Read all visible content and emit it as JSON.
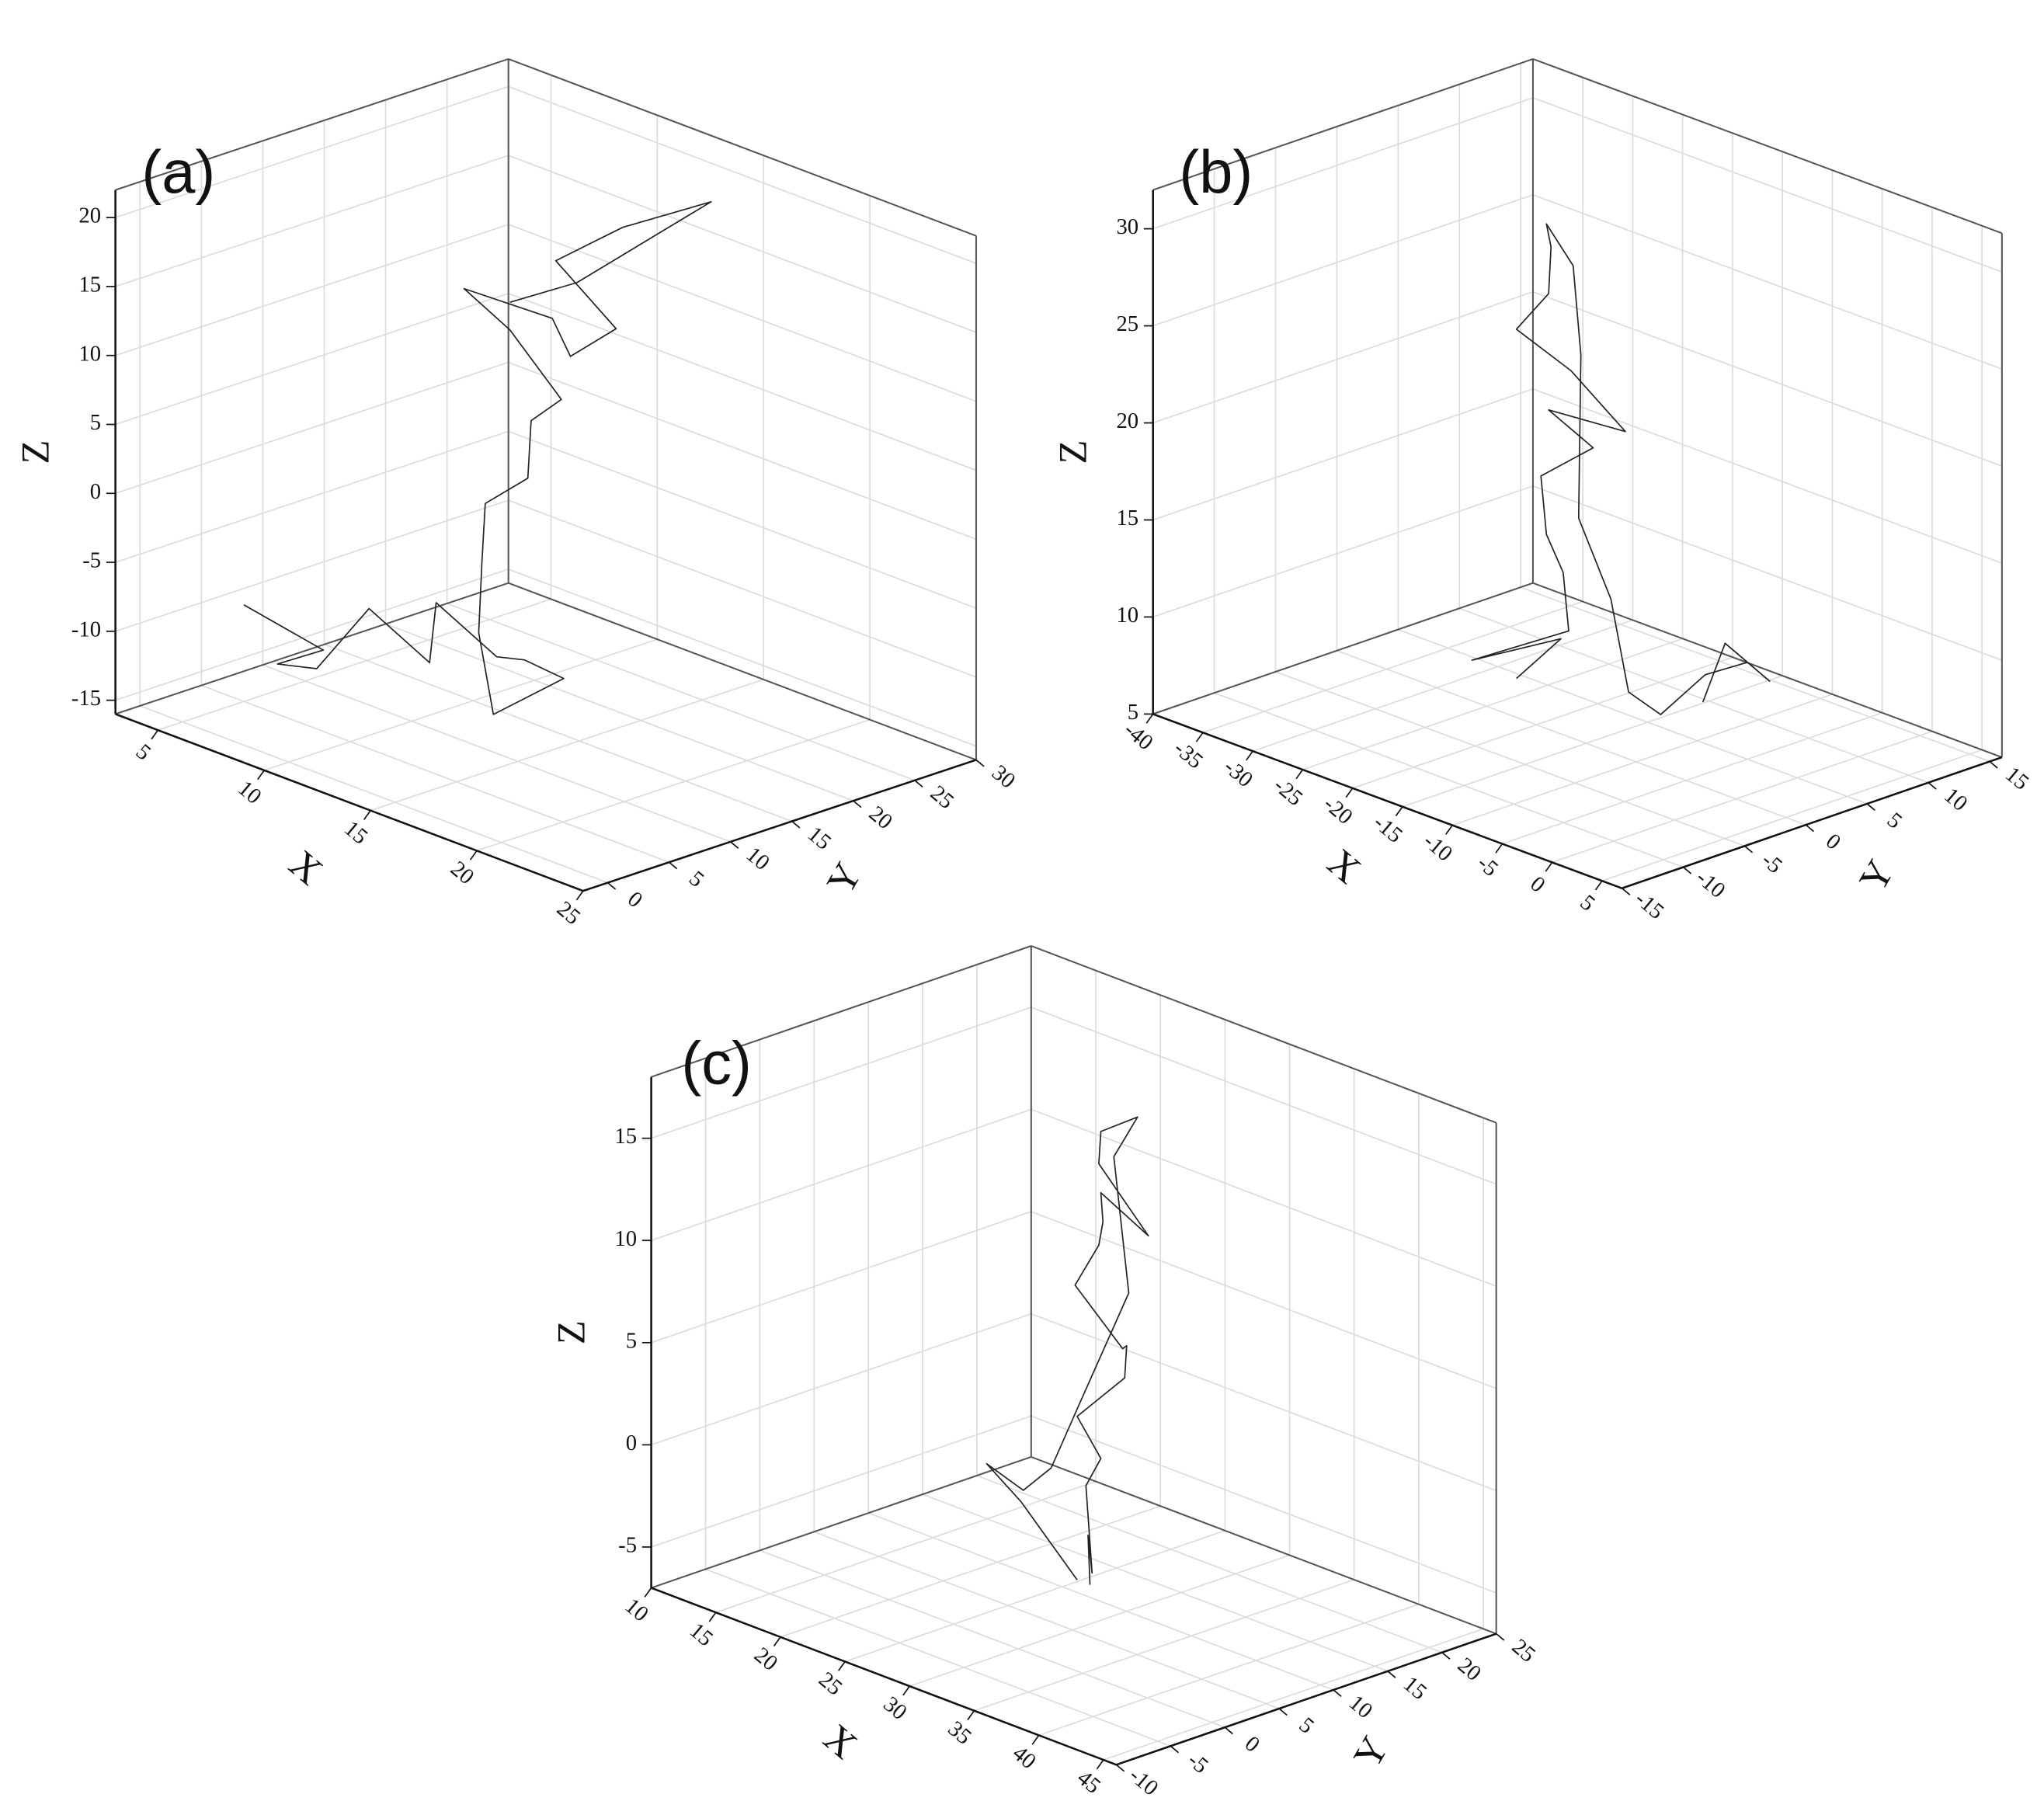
{
  "chart_data": [
    {
      "type": "line3d",
      "label": "(a)",
      "xlabel": "X",
      "ylabel": "Y",
      "zlabel": "Z",
      "xlim": [
        3,
        25
      ],
      "ylim": [
        -2,
        30
      ],
      "zlim": [
        -16,
        22
      ],
      "xticks": [
        5,
        10,
        15,
        20,
        25
      ],
      "yticks": [
        0,
        5,
        10,
        15,
        20,
        25,
        30
      ],
      "zticks": [
        -15,
        -10,
        -5,
        0,
        5,
        10,
        15,
        20
      ],
      "grid": true,
      "series": [
        {
          "color": "#222222",
          "x": [
            5,
            7,
            6,
            9,
            8,
            12,
            10,
            14,
            13,
            16,
            15,
            12,
            11,
            10,
            12,
            11,
            13,
            10,
            9,
            12,
            14,
            15,
            11,
            13,
            16,
            12,
            10
          ],
          "y": [
            5,
            8,
            6,
            4,
            10,
            8,
            12,
            10,
            14,
            12,
            8,
            12,
            14,
            16,
            16,
            18,
            17,
            18,
            16,
            18,
            16,
            18,
            20,
            22,
            24,
            20,
            18
          ],
          "z": [
            -9,
            -12,
            -13,
            -11,
            -9,
            -10,
            -8,
            -9,
            -11,
            -10,
            -12,
            -9,
            -5,
            -2,
            1,
            4,
            7,
            10,
            13,
            12,
            11,
            13,
            15,
            18,
            21,
            14,
            12
          ]
        }
      ]
    },
    {
      "type": "line3d",
      "label": "(b)",
      "xlabel": "X",
      "ylabel": "Y",
      "zlabel": "Z",
      "xlim": [
        -40,
        7
      ],
      "ylim": [
        -15,
        16
      ],
      "zlim": [
        5,
        32
      ],
      "xticks": [
        -40,
        -35,
        -30,
        -25,
        -20,
        -15,
        -10,
        -5,
        0,
        5
      ],
      "yticks": [
        -15,
        -10,
        -5,
        0,
        5,
        10,
        15
      ],
      "zticks": [
        5,
        10,
        15,
        20,
        25,
        30
      ],
      "grid": true,
      "series": [
        {
          "color": "#222222",
          "x": [
            -22,
            -20,
            -24,
            -18,
            -21,
            -19,
            -22,
            -18,
            -20,
            -16,
            -19,
            -22,
            -20,
            -21,
            -19,
            -20,
            -18,
            -17,
            -15,
            -12,
            -10,
            -8,
            -5,
            -4,
            -6,
            -7
          ],
          "y": [
            0,
            2,
            -2,
            1,
            3,
            0,
            2,
            3,
            1,
            4,
            2,
            0,
            1,
            2,
            0,
            3,
            2,
            1,
            2,
            1,
            2,
            4,
            5,
            6,
            4,
            3
          ],
          "z": [
            7,
            9,
            8,
            10,
            12,
            15,
            17,
            19,
            21,
            20,
            23,
            25,
            27,
            29,
            31,
            28,
            24,
            16,
            12,
            8,
            7,
            9,
            10,
            9,
            11,
            8
          ]
        }
      ]
    },
    {
      "type": "line3d",
      "label": "(c)",
      "xlabel": "X",
      "ylabel": "Y",
      "zlabel": "Z",
      "xlim": [
        10,
        46
      ],
      "ylim": [
        -10,
        25
      ],
      "zlim": [
        -7,
        18
      ],
      "xticks": [
        10,
        15,
        20,
        25,
        30,
        35,
        40,
        45
      ],
      "yticks": [
        -10,
        -5,
        0,
        5,
        10,
        15,
        20,
        25
      ],
      "zticks": [
        -5,
        0,
        5,
        10,
        15
      ],
      "grid": true,
      "series": [
        {
          "color": "#222222",
          "x": [
            28,
            27,
            29,
            26,
            28,
            27,
            29,
            30,
            28,
            26,
            27,
            29,
            28,
            30,
            27,
            28,
            30,
            29,
            31,
            28,
            25,
            22,
            20,
            21,
            24,
            27
          ],
          "y": [
            9,
            10,
            8,
            11,
            10,
            9,
            11,
            10,
            12,
            10,
            11,
            9,
            10,
            12,
            11,
            10,
            11,
            10,
            9,
            8,
            9,
            10,
            9,
            11,
            10,
            9
          ],
          "z": [
            -6,
            -4,
            -5,
            -2,
            0,
            2,
            4,
            6,
            5,
            8,
            10,
            12,
            13,
            11,
            14,
            16,
            17,
            15,
            9,
            3,
            -1,
            -3,
            -2,
            -4,
            -5,
            -6
          ]
        }
      ]
    }
  ]
}
